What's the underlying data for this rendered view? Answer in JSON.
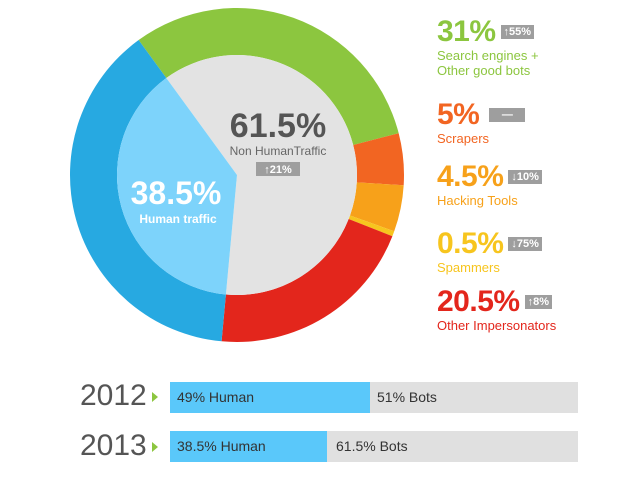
{
  "colors": {
    "good_bots": "#8cc63f",
    "scrapers": "#f26522",
    "hacking": "#f7a11a",
    "spammers": "#f7c51e",
    "impersonators": "#e3261c",
    "human_outer": "#27a9e1",
    "human_inner": "#7dd3fb",
    "nonhuman_inner": "#e3e3e3",
    "badge": "#9e9e9e",
    "year_arrow": "#8cc63f"
  },
  "center": {
    "nonhuman_value": "61.5%",
    "nonhuman_label": "Non HumanTraffic",
    "nonhuman_badge": "↑21%",
    "human_value": "38.5%",
    "human_label": "Human traffic"
  },
  "legend": [
    {
      "value": "31%",
      "badge": "↑55%",
      "label": "Search engines +\nOther good bots",
      "color_key": "good_bots"
    },
    {
      "value": "5%",
      "badge": "—",
      "label": "Scrapers",
      "color_key": "scrapers"
    },
    {
      "value": "4.5%",
      "badge": "↓10%",
      "label": "Hacking Tools",
      "color_key": "hacking"
    },
    {
      "value": "0.5%",
      "badge": "↓75%",
      "label": "Spammers",
      "color_key": "spammers"
    },
    {
      "value": "20.5%",
      "badge": "↑8%",
      "label": "Other Impersonators",
      "color_key": "impersonators"
    }
  ],
  "years": [
    {
      "year": "2012",
      "human_label": "49% Human",
      "bots_label": "51% Bots",
      "human_fraction": 0.49
    },
    {
      "year": "2013",
      "human_label": "38.5% Human",
      "bots_label": "61.5% Bots",
      "human_fraction": 0.385
    }
  ],
  "chart_data": [
    {
      "type": "pie",
      "categories": [
        "Search engines + Other good bots",
        "Scrapers",
        "Hacking Tools",
        "Spammers",
        "Other Impersonators",
        "Human traffic"
      ],
      "values": [
        31,
        5,
        4.5,
        0.5,
        20.5,
        38.5
      ],
      "inner_ring": {
        "categories": [
          "Non HumanTraffic",
          "Human traffic"
        ],
        "values": [
          61.5,
          38.5
        ]
      }
    },
    {
      "type": "bar",
      "categories": [
        "2012",
        "2013"
      ],
      "series": [
        {
          "name": "Human",
          "values": [
            49,
            38.5
          ]
        },
        {
          "name": "Bots",
          "values": [
            51,
            61.5
          ]
        }
      ],
      "ylim": [
        0,
        100
      ]
    }
  ]
}
